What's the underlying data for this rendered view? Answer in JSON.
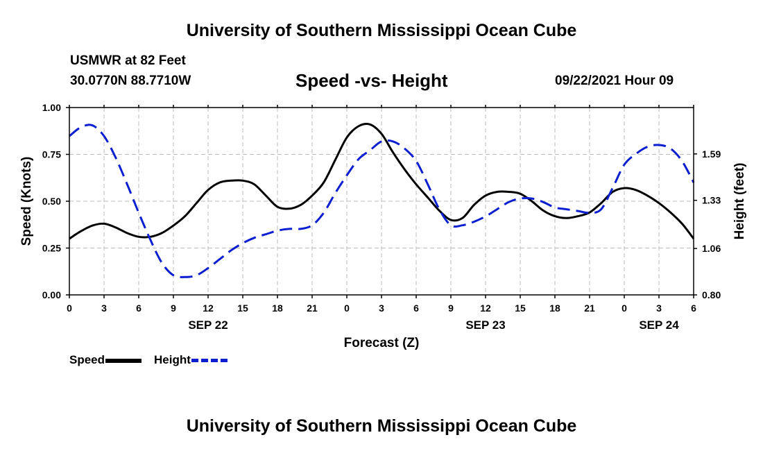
{
  "header": {
    "title": "University of Southern Mississippi Ocean Cube",
    "station": "USMWR at 82 Feet",
    "coords": "30.0770N  88.7710W",
    "subtitle": "Speed -vs- Height",
    "datetime": "09/22/2021 Hour 09"
  },
  "footer": {
    "title": "University of Southern Mississippi Ocean Cube"
  },
  "legend": {
    "speed_label": "Speed",
    "height_label": "Height"
  },
  "colors": {
    "speed": "#000000",
    "height": "#0b1fd0",
    "grid": "#bbbbbb"
  },
  "chart_data": {
    "type": "line",
    "title": "Speed -vs- Height",
    "xlabel": "Forecast (Z)",
    "ylabel": "Speed (Knots)",
    "y2label": "Height (feet)",
    "xlim": [
      0,
      54
    ],
    "ylim": [
      0,
      1
    ],
    "y2lim": [
      0.8,
      1.85
    ],
    "grid": true,
    "x_ticks": [
      0,
      3,
      6,
      9,
      12,
      15,
      18,
      21,
      24,
      27,
      30,
      33,
      36,
      39,
      42,
      45,
      48,
      51,
      54
    ],
    "x_tick_labels": [
      "0",
      "3",
      "6",
      "9",
      "12",
      "15",
      "18",
      "21",
      "0",
      "3",
      "6",
      "9",
      "12",
      "15",
      "18",
      "21",
      "0",
      "3",
      "6"
    ],
    "date_labels": [
      {
        "x": 12,
        "text": "SEP 22"
      },
      {
        "x": 36,
        "text": "SEP 23"
      },
      {
        "x": 51,
        "text": "SEP 24"
      }
    ],
    "y_ticks": [
      0,
      0.25,
      0.5,
      0.75,
      1.0
    ],
    "y_tick_labels": [
      "0.00",
      "0.25",
      "0.50",
      "0.75",
      "1.00"
    ],
    "y2_ticks": [
      0.8,
      1.06,
      1.33,
      1.59
    ],
    "y2_tick_labels": [
      "0.80",
      "1.06",
      "1.33",
      "1.59"
    ],
    "series": [
      {
        "name": "Speed",
        "axis": "left",
        "x": [
          0,
          1,
          2,
          3,
          4,
          5,
          6,
          7,
          8,
          9,
          10,
          11,
          12,
          13,
          14,
          15,
          16,
          17,
          18,
          19,
          20,
          21,
          22,
          23,
          24,
          25,
          26,
          27,
          28,
          29,
          30,
          31,
          32,
          33,
          34,
          35,
          36,
          37,
          38,
          39,
          40,
          41,
          42,
          43,
          44,
          45,
          46,
          47,
          48,
          49,
          50,
          51,
          52,
          53,
          54
        ],
        "values": [
          0.3,
          0.34,
          0.37,
          0.38,
          0.36,
          0.33,
          0.31,
          0.31,
          0.33,
          0.37,
          0.42,
          0.49,
          0.56,
          0.6,
          0.61,
          0.61,
          0.59,
          0.53,
          0.47,
          0.46,
          0.48,
          0.53,
          0.6,
          0.72,
          0.84,
          0.9,
          0.91,
          0.86,
          0.76,
          0.67,
          0.59,
          0.52,
          0.45,
          0.4,
          0.41,
          0.48,
          0.53,
          0.55,
          0.55,
          0.54,
          0.5,
          0.45,
          0.42,
          0.41,
          0.42,
          0.44,
          0.49,
          0.55,
          0.57,
          0.56,
          0.53,
          0.49,
          0.44,
          0.38,
          0.3
        ]
      },
      {
        "name": "Height",
        "axis": "right",
        "x": [
          0,
          1,
          2,
          3,
          4,
          5,
          6,
          7,
          8,
          9,
          10,
          11,
          12,
          13,
          14,
          15,
          16,
          17,
          18,
          19,
          20,
          21,
          22,
          23,
          24,
          25,
          26,
          27,
          28,
          29,
          30,
          31,
          32,
          33,
          34,
          35,
          36,
          37,
          38,
          39,
          40,
          41,
          42,
          43,
          44,
          45,
          46,
          47,
          48,
          49,
          50,
          51,
          52,
          53,
          54
        ],
        "values": [
          1.69,
          1.74,
          1.75,
          1.69,
          1.57,
          1.42,
          1.26,
          1.11,
          0.98,
          0.91,
          0.9,
          0.91,
          0.95,
          1.0,
          1.05,
          1.09,
          1.12,
          1.14,
          1.16,
          1.17,
          1.17,
          1.19,
          1.26,
          1.37,
          1.47,
          1.56,
          1.61,
          1.66,
          1.66,
          1.62,
          1.55,
          1.42,
          1.28,
          1.19,
          1.19,
          1.21,
          1.24,
          1.28,
          1.32,
          1.34,
          1.34,
          1.32,
          1.29,
          1.28,
          1.27,
          1.26,
          1.28,
          1.4,
          1.53,
          1.59,
          1.63,
          1.64,
          1.62,
          1.55,
          1.43
        ]
      }
    ]
  }
}
